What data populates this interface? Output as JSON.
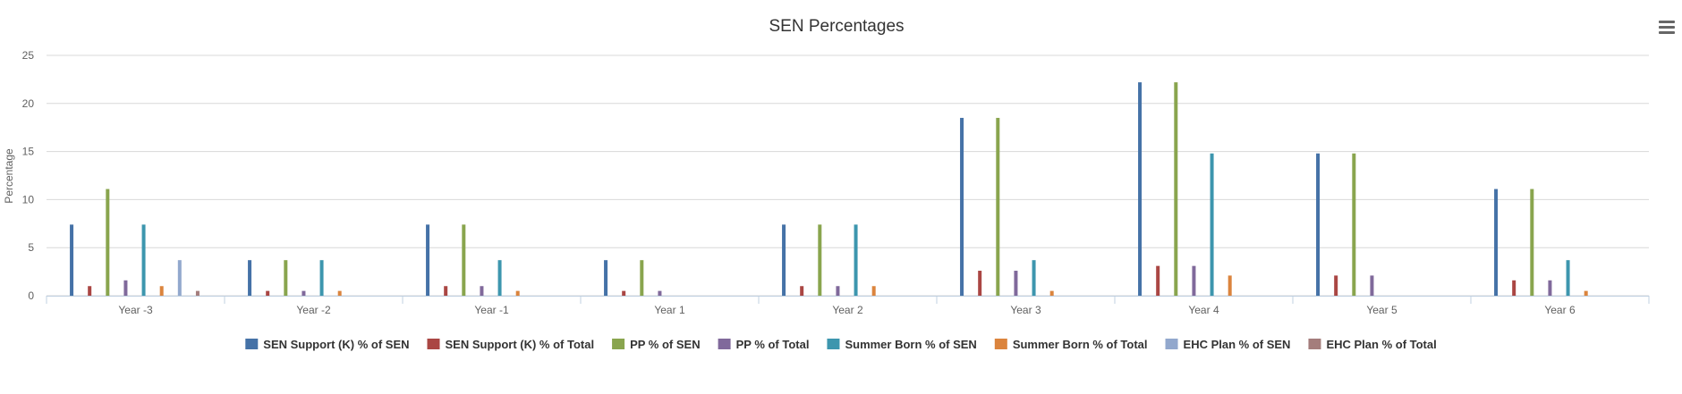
{
  "menu": {
    "icon": "hamburger-menu-icon"
  },
  "colors": {
    "grid": "#d8d8d8",
    "axis": "#c0d0e0",
    "text": "#333333",
    "tick": "#606060"
  },
  "chart_data": {
    "type": "bar",
    "title": "SEN Percentages",
    "xlabel": "",
    "ylabel": "Percentage",
    "ylim": [
      0,
      25
    ],
    "yticks": [
      0,
      5,
      10,
      15,
      20,
      25
    ],
    "grid": true,
    "legend_position": "bottom-center",
    "categories": [
      "Year -3",
      "Year -2",
      "Year -1",
      "Year 1",
      "Year 2",
      "Year 3",
      "Year 4",
      "Year 5",
      "Year 6"
    ],
    "series": [
      {
        "name": "SEN Support (K) % of SEN",
        "color": "#4572A7",
        "values": [
          7.4,
          3.7,
          7.4,
          3.7,
          7.4,
          18.5,
          22.2,
          14.8,
          11.1
        ]
      },
      {
        "name": "SEN Support (K) % of Total",
        "color": "#AA4643",
        "values": [
          1.0,
          0.5,
          1.0,
          0.5,
          1.0,
          2.6,
          3.1,
          2.1,
          1.6
        ]
      },
      {
        "name": "PP % of SEN",
        "color": "#89A54E",
        "values": [
          11.1,
          3.7,
          7.4,
          3.7,
          7.4,
          18.5,
          22.2,
          14.8,
          11.1
        ]
      },
      {
        "name": "PP % of Total",
        "color": "#80699B",
        "values": [
          1.6,
          0.5,
          1.0,
          0.5,
          1.0,
          2.6,
          3.1,
          2.1,
          1.6
        ]
      },
      {
        "name": "Summer Born % of SEN",
        "color": "#3D96AE",
        "values": [
          7.4,
          3.7,
          3.7,
          0,
          7.4,
          3.7,
          14.8,
          0,
          3.7
        ]
      },
      {
        "name": "Summer Born % of Total",
        "color": "#DB843D",
        "values": [
          1.0,
          0.5,
          0.5,
          0,
          1.0,
          0.5,
          2.1,
          0,
          0.5
        ]
      },
      {
        "name": "EHC Plan % of SEN",
        "color": "#92A8CD",
        "values": [
          3.7,
          0,
          0,
          0,
          0,
          0,
          0,
          0,
          0
        ]
      },
      {
        "name": "EHC Plan % of Total",
        "color": "#A47D7C",
        "values": [
          0.5,
          0,
          0,
          0,
          0,
          0,
          0,
          0,
          0
        ]
      }
    ]
  }
}
